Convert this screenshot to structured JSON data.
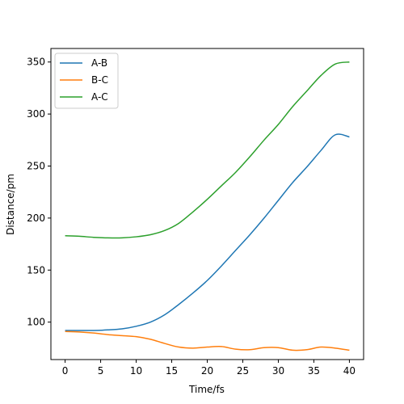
{
  "chart_data": {
    "type": "line",
    "xlabel": "Time/fs",
    "ylabel": "Distance/pm",
    "xlim": [
      -2,
      42
    ],
    "ylim": [
      64,
      363
    ],
    "xticks": [
      0,
      5,
      10,
      15,
      20,
      25,
      30,
      35,
      40
    ],
    "yticks": [
      100,
      150,
      200,
      250,
      300,
      350
    ],
    "grid": false,
    "legend": "top-left",
    "x": [
      0,
      2,
      4,
      6,
      8,
      10,
      12,
      14,
      16,
      18,
      20,
      22,
      24,
      26,
      28,
      30,
      32,
      34,
      36,
      38,
      40
    ],
    "series": [
      {
        "name": "A-B",
        "color": "#1f77b4",
        "values": [
          92,
          92,
          92,
          92.5,
          93.5,
          96,
          100,
          107,
          117,
          128,
          140,
          154,
          169,
          184,
          200,
          217,
          234,
          249,
          265,
          280,
          278
        ]
      },
      {
        "name": "B-C",
        "color": "#ff7f0e",
        "values": [
          91,
          90.5,
          89.5,
          88,
          87,
          86,
          83.5,
          79.5,
          76,
          75,
          76,
          76.5,
          74,
          73.5,
          75.5,
          75.5,
          73,
          73.5,
          76,
          75,
          73
        ]
      },
      {
        "name": "A-C",
        "color": "#2ca02c",
        "values": [
          183,
          182.5,
          181.5,
          181,
          181,
          182,
          184,
          188,
          195,
          206,
          218,
          231,
          244,
          259,
          275,
          290,
          307,
          322,
          337,
          348,
          350
        ]
      }
    ]
  }
}
